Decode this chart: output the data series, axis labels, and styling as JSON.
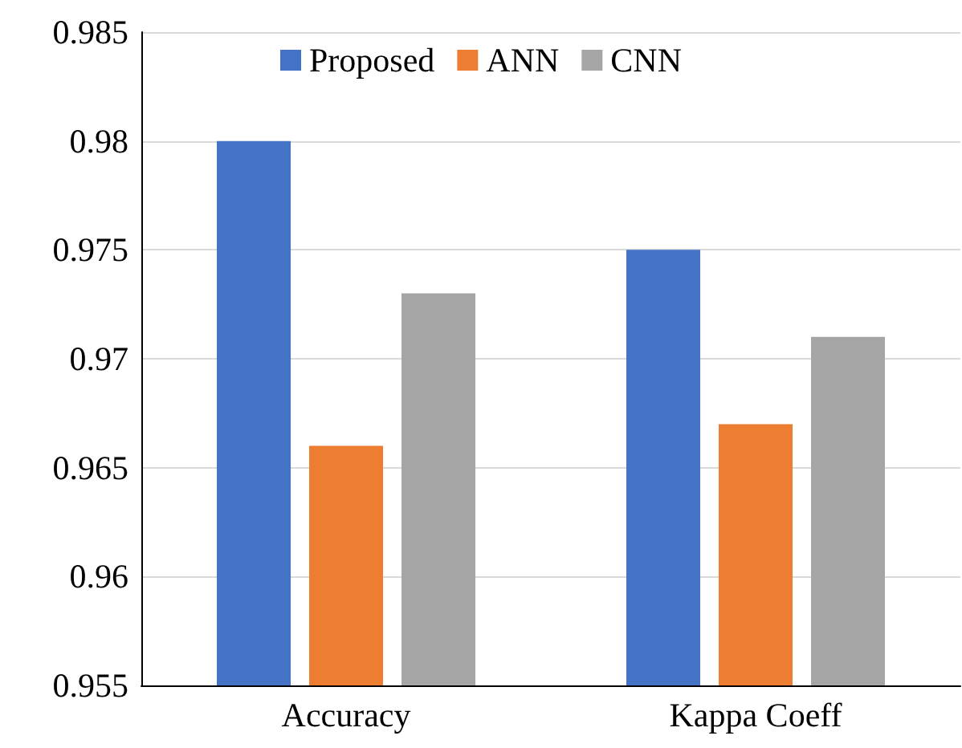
{
  "chart_data": {
    "type": "bar",
    "categories": [
      "Accuracy",
      "Kappa Coeff"
    ],
    "series": [
      {
        "name": "Proposed",
        "color": "#4472c4",
        "values": [
          0.98,
          0.975
        ]
      },
      {
        "name": "ANN",
        "color": "#ed7d31",
        "values": [
          0.966,
          0.967
        ]
      },
      {
        "name": "CNN",
        "color": "#a5a5a5",
        "values": [
          0.973,
          0.971
        ]
      }
    ],
    "ylim": [
      0.955,
      0.985
    ],
    "yticks": [
      0.955,
      0.96,
      0.965,
      0.97,
      0.975,
      0.98,
      0.985
    ],
    "grid": "y",
    "legend": "top"
  }
}
